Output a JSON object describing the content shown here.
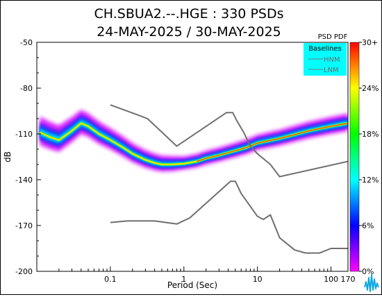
{
  "chart_data": {
    "type": "heatmap",
    "title": "CH.SBUA2.--.HGE : 330 PSDs",
    "subtitle": "24-MAY-2025 / 30-MAY-2025",
    "xlabel": "Period (Sec)",
    "ylabel": "dB",
    "x_scale": "log",
    "xlim": [
      0.01,
      170
    ],
    "ylim": [
      -200,
      -50
    ],
    "x_ticks": [
      "0.1",
      "1",
      "10",
      "100",
      "170"
    ],
    "y_ticks": [
      "-50",
      "-80",
      "-110",
      "-140",
      "-170",
      "-200"
    ],
    "legend": {
      "title": "Baselines",
      "entries": [
        "HNM",
        "LNM"
      ],
      "placement": "top-right",
      "background": "#00ffff"
    },
    "colorbar": {
      "title": "PSD PDF",
      "ticks": [
        "30+",
        "24%",
        "18%",
        "12%",
        "6%",
        "0%"
      ],
      "range": [
        0,
        30
      ],
      "colors": [
        "#ff00ff",
        "#8000ff",
        "#0000ff",
        "#0080ff",
        "#00ffff",
        "#00ff80",
        "#00ff00",
        "#80ff00",
        "#ffff00",
        "#ff8000",
        "#ff0000"
      ]
    },
    "mode_curve": {
      "period": [
        0.011,
        0.015,
        0.02,
        0.03,
        0.04,
        0.05,
        0.07,
        0.1,
        0.15,
        0.2,
        0.3,
        0.4,
        0.5,
        0.7,
        1,
        1.5,
        2,
        3,
        5,
        7,
        10,
        20,
        50,
        100,
        170
      ],
      "db": [
        -109,
        -112,
        -114,
        -108,
        -103,
        -105,
        -110,
        -114,
        -119,
        -123,
        -127,
        -129,
        -130,
        -130,
        -129.5,
        -128,
        -126,
        -124,
        -121,
        -119,
        -116,
        -113,
        -108,
        -105,
        -103
      ]
    },
    "series": [
      {
        "name": "HNM",
        "period": [
          0.1,
          0.22,
          0.32,
          0.8,
          3.8,
          4.6,
          5.2,
          6.5,
          8,
          10,
          15,
          20,
          170
        ],
        "db": [
          -91,
          -97,
          -100,
          -118,
          -96,
          -96,
          -101,
          -109,
          -118,
          -123,
          -130,
          -138,
          -128
        ]
      },
      {
        "name": "LNM",
        "period": [
          0.1,
          0.17,
          0.4,
          0.8,
          1.2,
          2.4,
          4.3,
          5,
          6,
          10,
          12,
          15,
          20,
          32,
          45,
          70,
          100,
          170
        ],
        "db": [
          -168,
          -167,
          -167,
          -169,
          -165,
          -152,
          -141,
          -141,
          -149,
          -164,
          -166,
          -163,
          -178,
          -186,
          -188,
          -188,
          -185,
          -185
        ]
      }
    ]
  }
}
